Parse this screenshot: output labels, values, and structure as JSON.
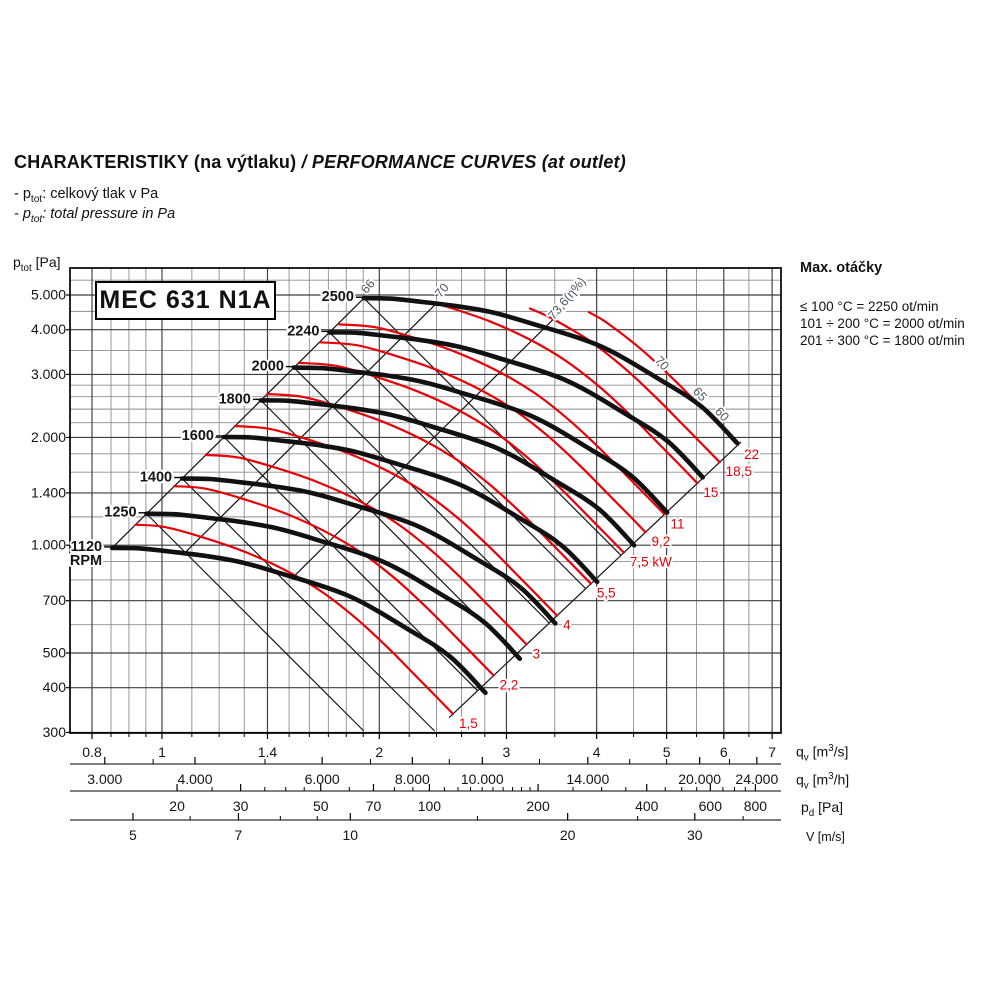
{
  "header": {
    "title_cs": "CHARAKTERISTIKY (na výtlaku)",
    "title_en": " / PERFORMANCE CURVES (at outlet)",
    "note_cs_parts": [
      [
        "t",
        "- p"
      ],
      [
        "sub",
        "tot"
      ],
      [
        "t",
        ": celkový tlak v Pa"
      ]
    ],
    "note_en_parts": [
      [
        "t",
        "- p"
      ],
      [
        "sub",
        "tot"
      ],
      [
        "t",
        ": total pressure in Pa"
      ]
    ]
  },
  "model_label": "MEC 631 N1A",
  "side_info": {
    "heading": "Max. otáčky",
    "lines": [
      "≤ 100 °C = 2250 ot/min",
      "101 ÷ 200 °C = 2000 ot/min",
      "201 ÷ 300 °C = 1800 ot/min"
    ]
  },
  "chart_data": {
    "type": "line",
    "title": "MEC 631 N1A",
    "y_axis": {
      "unit_parts": [
        [
          "t",
          "p"
        ],
        [
          "sub",
          "tot"
        ],
        [
          "t",
          " [Pa]"
        ]
      ],
      "scale": "log",
      "major": [
        {
          "v": 5000,
          "t": "5.000"
        },
        {
          "v": 4000,
          "t": "4.000"
        },
        {
          "v": 3000,
          "t": "3.000"
        },
        {
          "v": 2000,
          "t": "2.000"
        },
        {
          "v": 1400,
          "t": "1.400"
        },
        {
          "v": 1000,
          "t": "1.000"
        },
        {
          "v": 700,
          "t": "700"
        },
        {
          "v": 500,
          "t": "500"
        },
        {
          "v": 400,
          "t": "400"
        },
        {
          "v": 300,
          "t": "300"
        }
      ],
      "minor": [
        600,
        800,
        900,
        1200,
        1600,
        1800,
        2200,
        2400,
        2600,
        2800,
        3500,
        4500,
        5500
      ]
    },
    "x_axes": [
      {
        "id": "qv_m3s",
        "unit_parts": [
          [
            "t",
            "q"
          ],
          [
            "sub",
            "v"
          ],
          [
            "t",
            " [m"
          ],
          [
            "sup",
            "3"
          ],
          [
            "t",
            "/s]"
          ]
        ],
        "scale": "log",
        "major": [
          {
            "v": 0.8,
            "t": "0.8"
          },
          {
            "v": 1,
            "t": "1"
          },
          {
            "v": 1.4,
            "t": "1.4"
          },
          {
            "v": 2,
            "t": "2"
          },
          {
            "v": 3,
            "t": "3"
          },
          {
            "v": 4,
            "t": "4"
          },
          {
            "v": 5,
            "t": "5"
          },
          {
            "v": 6,
            "t": "6"
          },
          {
            "v": 7,
            "t": "7"
          }
        ],
        "minor": [
          0.85,
          0.9,
          0.95,
          1.1,
          1.2,
          1.3,
          1.5,
          1.6,
          1.7,
          1.8,
          1.9,
          2.2,
          2.4,
          2.6,
          2.8,
          3.5,
          4.5,
          5.5,
          6.5
        ]
      },
      {
        "id": "qv_m3h",
        "unit_parts": [
          [
            "t",
            "q"
          ],
          [
            "sub",
            "v"
          ],
          [
            "t",
            " [m"
          ],
          [
            "sup",
            "3"
          ],
          [
            "t",
            "/h]"
          ]
        ],
        "scale": "log",
        "major": [
          {
            "v": 3000,
            "t": "3.000"
          },
          {
            "v": 4000,
            "t": "4.000"
          },
          {
            "v": 6000,
            "t": "6.000"
          },
          {
            "v": 8000,
            "t": "8.000"
          },
          {
            "v": 10000,
            "t": "10.000"
          },
          {
            "v": 14000,
            "t": "14.000"
          },
          {
            "v": 20000,
            "t": "20.000"
          },
          {
            "v": 24000,
            "t": "24.000"
          }
        ],
        "minor": [
          3500,
          5000,
          7000,
          9000,
          12000,
          16000,
          18000,
          22000
        ]
      },
      {
        "id": "pd_pa",
        "unit_parts": [
          [
            "t",
            "p"
          ],
          [
            "sub",
            "d"
          ],
          [
            "t",
            " [Pa]"
          ]
        ],
        "scale": "log",
        "major": [
          {
            "v": 20,
            "t": "20"
          },
          {
            "v": 30,
            "t": "30"
          },
          {
            "v": 50,
            "t": "50"
          },
          {
            "v": 70,
            "t": "70"
          },
          {
            "v": 100,
            "t": "100"
          },
          {
            "v": 200,
            "t": "200"
          },
          {
            "v": 400,
            "t": "400"
          },
          {
            "v": 600,
            "t": "600"
          },
          {
            "v": 800,
            "t": "800"
          }
        ],
        "minor": [
          25,
          35,
          40,
          45,
          60,
          80,
          90,
          110,
          120,
          130,
          140,
          150,
          160,
          170,
          180,
          190,
          250,
          300,
          350,
          450,
          500,
          550,
          650,
          700,
          750
        ]
      },
      {
        "id": "v_ms",
        "unit_parts": [
          [
            "t",
            "V [m/s]"
          ]
        ],
        "scale": "log",
        "major": [
          {
            "v": 5,
            "t": "5"
          },
          {
            "v": 7,
            "t": "7"
          },
          {
            "v": 10,
            "t": "10"
          },
          {
            "v": 20,
            "t": "20"
          },
          {
            "v": 30,
            "t": "30"
          }
        ],
        "minor": [
          6,
          8,
          9,
          15,
          25,
          35
        ]
      }
    ],
    "rpm_curves": {
      "label_suffix": "RPM",
      "base_rpm": 1120,
      "rpms": [
        1120,
        1250,
        1400,
        1600,
        1800,
        2000,
        2240,
        2500
      ],
      "base_qp": [
        [
          0.853,
          983
        ],
        [
          0.932,
          980
        ],
        [
          1.026,
          960
        ],
        [
          1.147,
          934
        ],
        [
          1.283,
          898
        ],
        [
          1.455,
          836
        ],
        [
          1.811,
          723
        ],
        [
          2.199,
          580
        ],
        [
          2.508,
          488
        ],
        [
          2.805,
          387
        ]
      ]
    },
    "power_curves": {
      "unit": "kW",
      "base_kw": 1.5,
      "values": [
        1.5,
        2.2,
        3,
        4,
        5.5,
        7.5,
        9.2,
        11,
        15,
        18.5,
        22
      ],
      "labels": [
        "1,5",
        "2,2",
        "3",
        "4",
        "5,5",
        "7,5 kW",
        "9,2",
        "11",
        "15",
        "18,5",
        "22"
      ],
      "base_qp": [
        [
          0.897,
          1146
        ],
        [
          1.01,
          1124
        ],
        [
          1.147,
          1047
        ],
        [
          1.303,
          958
        ],
        [
          1.481,
          852
        ],
        [
          1.667,
          740
        ],
        [
          1.857,
          625
        ],
        [
          2.058,
          516
        ],
        [
          2.248,
          431
        ],
        [
          2.409,
          374
        ],
        [
          2.53,
          338
        ]
      ]
    },
    "efficiency": {
      "top_labels": [
        "66",
        "70",
        "73,6(η%)"
      ],
      "right_labels": [
        "70",
        "65",
        "60"
      ]
    },
    "colors": {
      "black": "#111111",
      "red": "#e60008",
      "grid_major": "#3d3d3d",
      "grid_minor": "#8d8d8d",
      "eff_text": "#4d5866"
    }
  }
}
